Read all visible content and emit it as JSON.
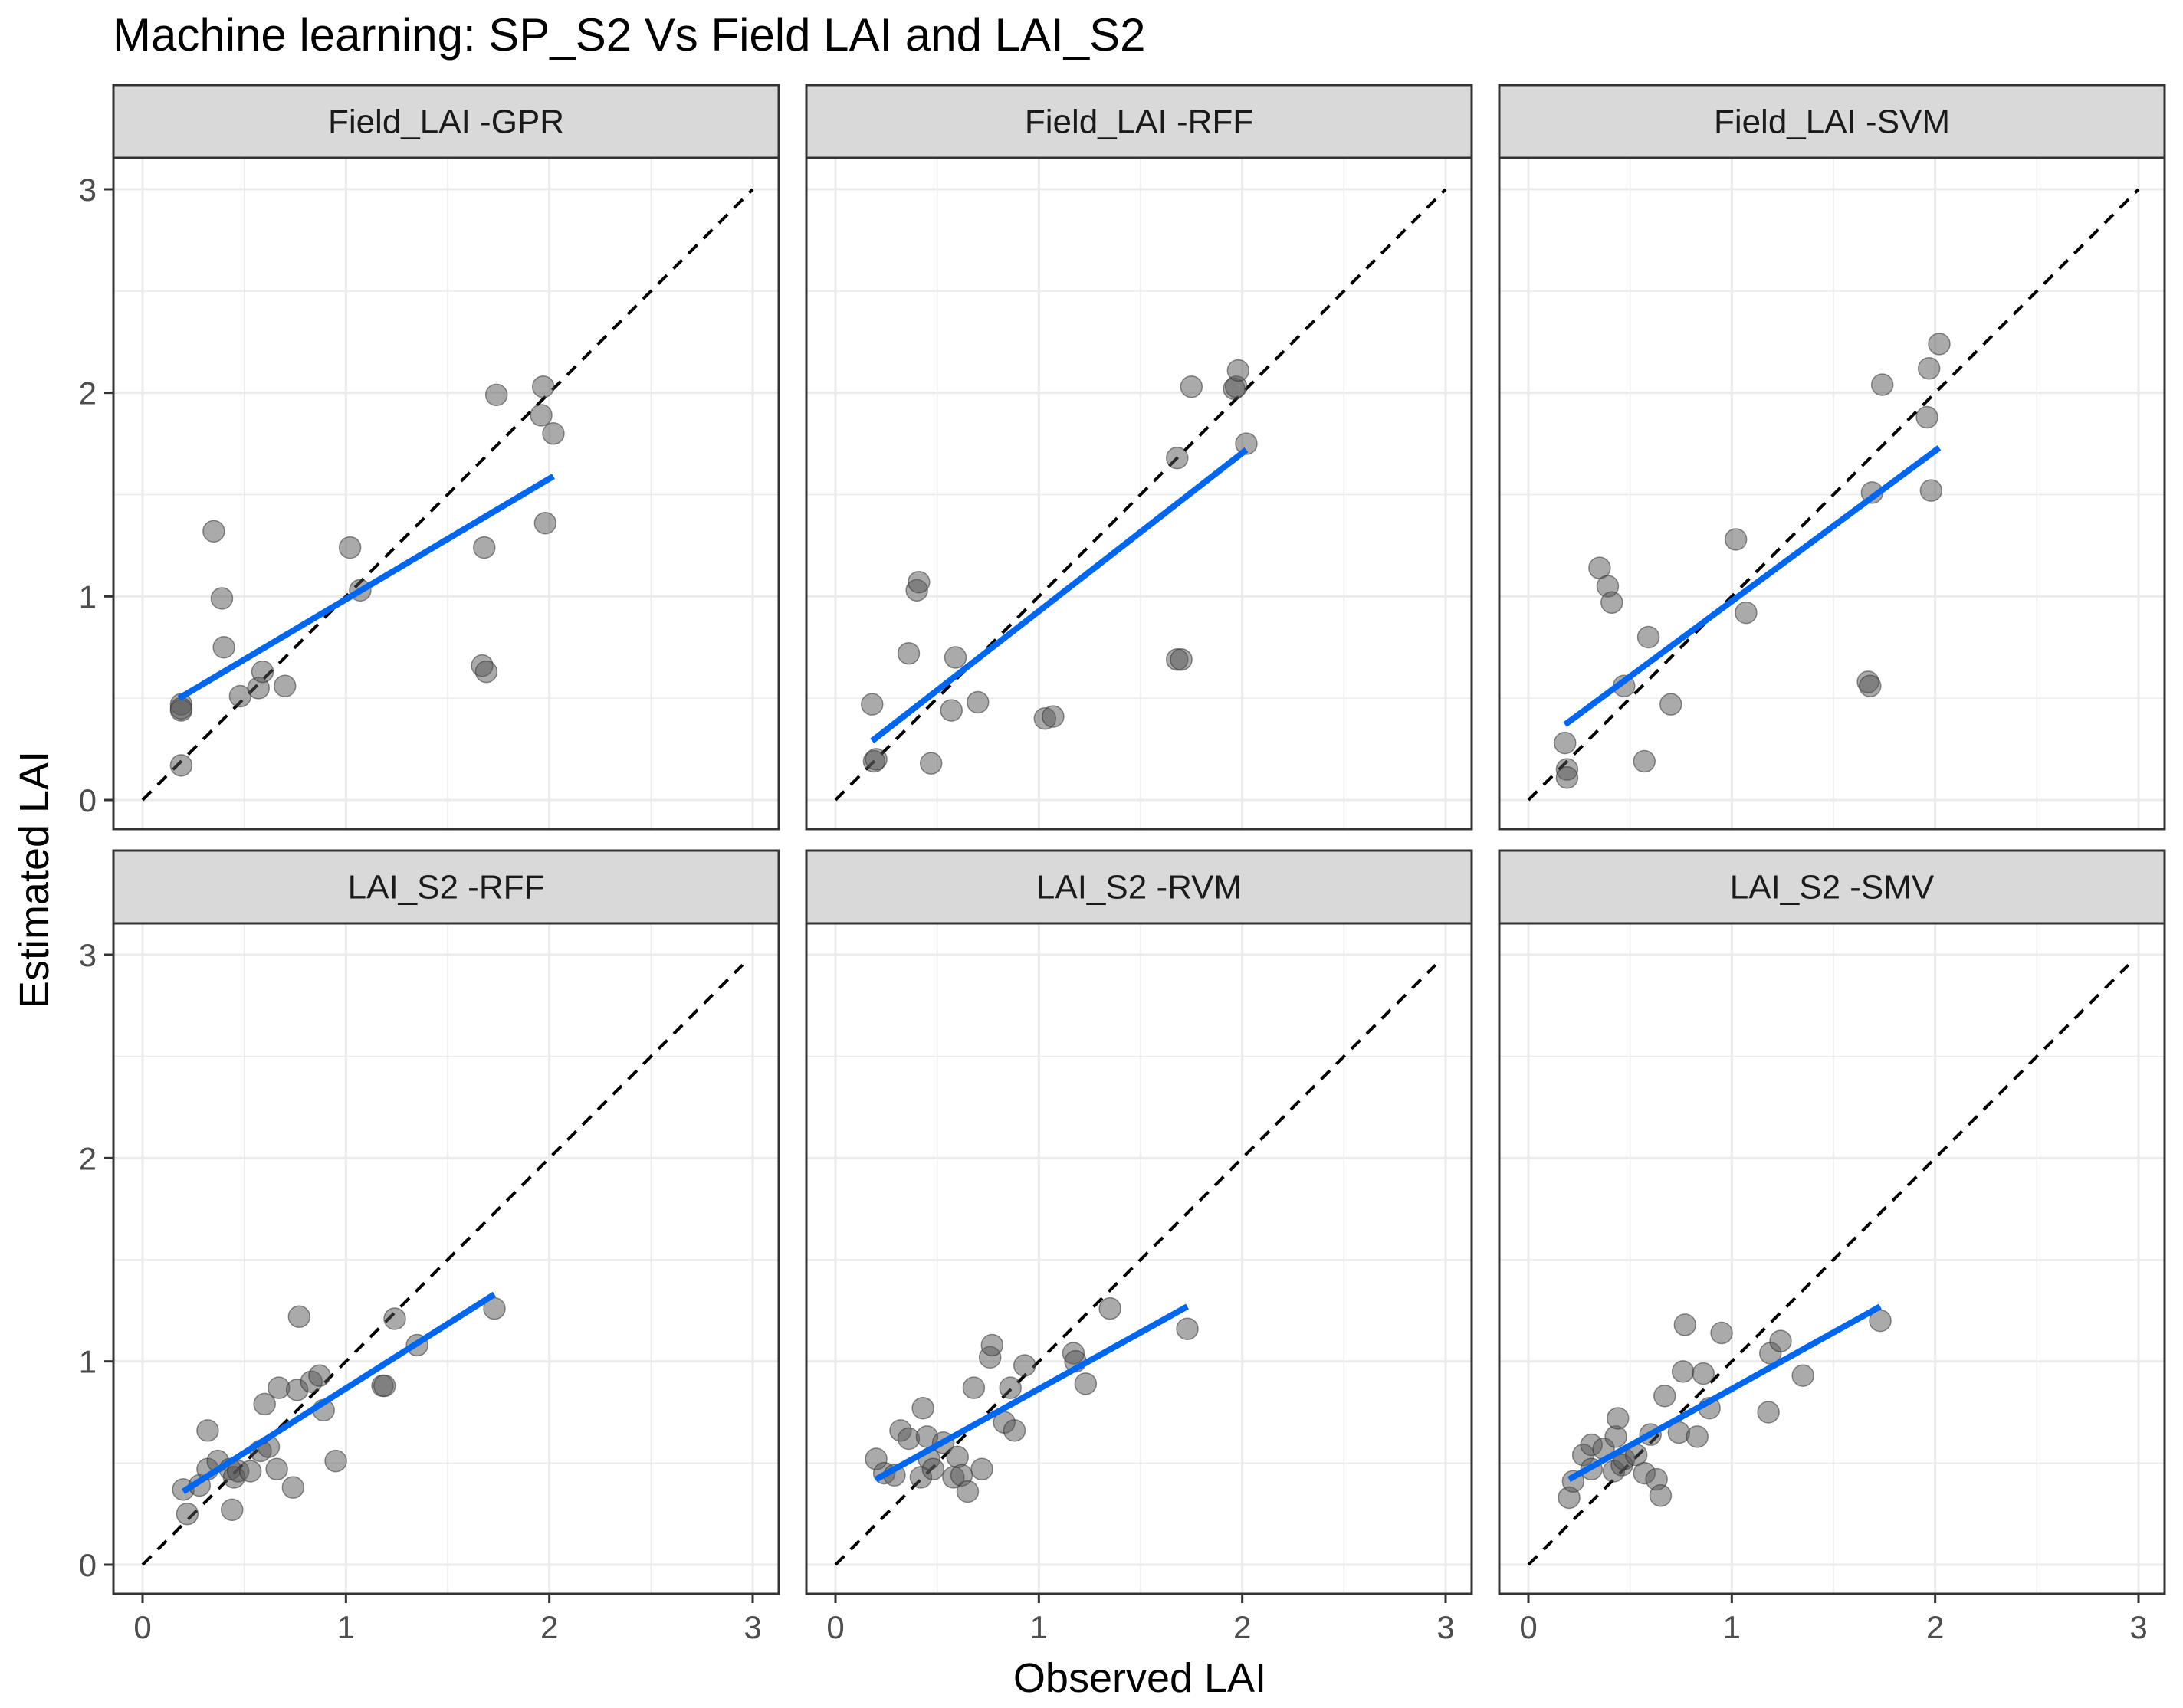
{
  "title": "Machine learning: SP_S2 Vs Field LAI and LAI_S2",
  "xlabel": "Observed LAI",
  "ylabel": "Estimated LAI",
  "colors": {
    "fit_line": "#0066ee",
    "point_fill": "#555555",
    "strip_bg": "#d9d9d9",
    "grid": "#ebebeb",
    "border": "#333333",
    "identity_line": "#000000"
  },
  "chart_data": [
    {
      "type": "scatter",
      "panel": "Field_LAI -GPR",
      "xlim": [
        0,
        3
      ],
      "ylim": [
        0,
        3
      ],
      "xticks": [
        "0",
        "1",
        "2",
        "3"
      ],
      "yticks": [
        "0",
        "1",
        "2",
        "3"
      ],
      "points": [
        [
          0.19,
          0.47
        ],
        [
          0.19,
          0.44
        ],
        [
          0.19,
          0.45
        ],
        [
          0.19,
          0.17
        ],
        [
          0.35,
          1.32
        ],
        [
          0.39,
          0.99
        ],
        [
          0.4,
          0.75
        ],
        [
          0.48,
          0.51
        ],
        [
          0.57,
          0.55
        ],
        [
          0.59,
          0.63
        ],
        [
          0.7,
          0.56
        ],
        [
          1.02,
          1.24
        ],
        [
          1.07,
          1.03
        ],
        [
          1.67,
          0.66
        ],
        [
          1.68,
          1.24
        ],
        [
          1.69,
          0.63
        ],
        [
          1.74,
          1.99
        ],
        [
          1.96,
          1.89
        ],
        [
          1.97,
          2.03
        ],
        [
          1.98,
          1.36
        ],
        [
          2.02,
          1.8
        ]
      ],
      "fit": {
        "x": [
          0.18,
          2.02
        ],
        "y": [
          0.5,
          1.59
        ]
      },
      "identity": {
        "x": [
          0,
          3
        ],
        "y": [
          0,
          3
        ]
      }
    },
    {
      "type": "scatter",
      "panel": "Field_LAI -RFF",
      "xlim": [
        0,
        3
      ],
      "ylim": [
        0,
        3
      ],
      "xticks": [
        "0",
        "1",
        "2",
        "3"
      ],
      "yticks": [
        "0",
        "1",
        "2",
        "3"
      ],
      "points": [
        [
          0.18,
          0.47
        ],
        [
          0.19,
          0.19
        ],
        [
          0.2,
          0.2
        ],
        [
          0.36,
          0.72
        ],
        [
          0.4,
          1.03
        ],
        [
          0.41,
          1.07
        ],
        [
          0.47,
          0.18
        ],
        [
          0.57,
          0.44
        ],
        [
          0.59,
          0.7
        ],
        [
          0.7,
          0.48
        ],
        [
          1.03,
          0.4
        ],
        [
          1.07,
          0.41
        ],
        [
          1.68,
          1.68
        ],
        [
          1.68,
          0.69
        ],
        [
          1.7,
          0.69
        ],
        [
          1.75,
          2.03
        ],
        [
          1.96,
          2.02
        ],
        [
          1.97,
          2.03
        ],
        [
          1.98,
          2.11
        ],
        [
          2.02,
          1.75
        ]
      ],
      "fit": {
        "x": [
          0.18,
          2.02
        ],
        "y": [
          0.29,
          1.72
        ]
      },
      "identity": {
        "x": [
          0,
          3
        ],
        "y": [
          0,
          3
        ]
      }
    },
    {
      "type": "scatter",
      "panel": "Field_LAI -SVM",
      "xlim": [
        0,
        3
      ],
      "ylim": [
        0,
        3
      ],
      "xticks": [
        "0",
        "1",
        "2",
        "3"
      ],
      "yticks": [
        "0",
        "1",
        "2",
        "3"
      ],
      "points": [
        [
          0.18,
          0.28
        ],
        [
          0.19,
          0.15
        ],
        [
          0.19,
          0.11
        ],
        [
          0.35,
          1.14
        ],
        [
          0.39,
          1.05
        ],
        [
          0.41,
          0.97
        ],
        [
          0.47,
          0.56
        ],
        [
          0.57,
          0.19
        ],
        [
          0.59,
          0.8
        ],
        [
          0.7,
          0.47
        ],
        [
          1.02,
          1.28
        ],
        [
          1.07,
          0.92
        ],
        [
          1.67,
          0.58
        ],
        [
          1.68,
          0.56
        ],
        [
          1.69,
          1.51
        ],
        [
          1.74,
          2.04
        ],
        [
          1.96,
          1.88
        ],
        [
          1.97,
          2.12
        ],
        [
          1.98,
          1.52
        ],
        [
          2.02,
          2.24
        ]
      ],
      "fit": {
        "x": [
          0.18,
          2.02
        ],
        "y": [
          0.37,
          1.73
        ]
      },
      "identity": {
        "x": [
          0,
          3
        ],
        "y": [
          0,
          3
        ]
      }
    },
    {
      "type": "scatter",
      "panel": "LAI_S2 -RFF",
      "xlim": [
        0,
        3
      ],
      "ylim": [
        0,
        3
      ],
      "xticks": [
        "0",
        "1",
        "2",
        "3"
      ],
      "yticks": [
        "0",
        "1",
        "2",
        "3"
      ],
      "points": [
        [
          0.2,
          0.37
        ],
        [
          0.22,
          0.25
        ],
        [
          0.28,
          0.39
        ],
        [
          0.32,
          0.47
        ],
        [
          0.32,
          0.66
        ],
        [
          0.37,
          0.51
        ],
        [
          0.43,
          0.47
        ],
        [
          0.44,
          0.27
        ],
        [
          0.45,
          0.43
        ],
        [
          0.47,
          0.46
        ],
        [
          0.53,
          0.46
        ],
        [
          0.58,
          0.56
        ],
        [
          0.6,
          0.79
        ],
        [
          0.62,
          0.58
        ],
        [
          0.66,
          0.47
        ],
        [
          0.67,
          0.87
        ],
        [
          0.74,
          0.38
        ],
        [
          0.76,
          0.86
        ],
        [
          0.77,
          1.22
        ],
        [
          0.83,
          0.9
        ],
        [
          0.87,
          0.93
        ],
        [
          0.89,
          0.76
        ],
        [
          0.95,
          0.51
        ],
        [
          1.18,
          0.88
        ],
        [
          1.19,
          0.88
        ],
        [
          1.24,
          1.21
        ],
        [
          1.35,
          1.08
        ],
        [
          1.73,
          1.26
        ]
      ],
      "fit": {
        "x": [
          0.2,
          1.73
        ],
        "y": [
          0.36,
          1.33
        ]
      },
      "identity": {
        "x": [
          0,
          2.95
        ],
        "y": [
          0,
          2.95
        ]
      }
    },
    {
      "type": "scatter",
      "panel": "LAI_S2 -RVM",
      "xlim": [
        0,
        3
      ],
      "ylim": [
        0,
        3
      ],
      "xticks": [
        "0",
        "1",
        "2",
        "3"
      ],
      "yticks": [
        "0",
        "1",
        "2",
        "3"
      ],
      "points": [
        [
          0.2,
          0.52
        ],
        [
          0.24,
          0.45
        ],
        [
          0.29,
          0.44
        ],
        [
          0.32,
          0.66
        ],
        [
          0.36,
          0.62
        ],
        [
          0.42,
          0.43
        ],
        [
          0.43,
          0.77
        ],
        [
          0.45,
          0.63
        ],
        [
          0.46,
          0.52
        ],
        [
          0.48,
          0.47
        ],
        [
          0.53,
          0.6
        ],
        [
          0.58,
          0.43
        ],
        [
          0.6,
          0.53
        ],
        [
          0.62,
          0.44
        ],
        [
          0.65,
          0.36
        ],
        [
          0.68,
          0.87
        ],
        [
          0.72,
          0.47
        ],
        [
          0.76,
          1.02
        ],
        [
          0.77,
          1.08
        ],
        [
          0.83,
          0.7
        ],
        [
          0.86,
          0.87
        ],
        [
          0.88,
          0.66
        ],
        [
          0.93,
          0.98
        ],
        [
          1.17,
          1.04
        ],
        [
          1.18,
          1.0
        ],
        [
          1.23,
          0.89
        ],
        [
          1.35,
          1.26
        ],
        [
          1.73,
          1.16
        ]
      ],
      "fit": {
        "x": [
          0.2,
          1.73
        ],
        "y": [
          0.42,
          1.27
        ]
      },
      "identity": {
        "x": [
          0,
          2.95
        ],
        "y": [
          0,
          2.95
        ]
      }
    },
    {
      "type": "scatter",
      "panel": "LAI_S2 -SMV",
      "xlim": [
        0,
        3
      ],
      "ylim": [
        0,
        3
      ],
      "xticks": [
        "0",
        "1",
        "2",
        "3"
      ],
      "yticks": [
        "0",
        "1",
        "2",
        "3"
      ],
      "points": [
        [
          0.2,
          0.33
        ],
        [
          0.22,
          0.41
        ],
        [
          0.27,
          0.54
        ],
        [
          0.31,
          0.47
        ],
        [
          0.31,
          0.59
        ],
        [
          0.37,
          0.57
        ],
        [
          0.42,
          0.46
        ],
        [
          0.43,
          0.63
        ],
        [
          0.44,
          0.72
        ],
        [
          0.46,
          0.49
        ],
        [
          0.47,
          0.52
        ],
        [
          0.53,
          0.54
        ],
        [
          0.57,
          0.45
        ],
        [
          0.6,
          0.64
        ],
        [
          0.63,
          0.42
        ],
        [
          0.65,
          0.34
        ],
        [
          0.67,
          0.83
        ],
        [
          0.74,
          0.65
        ],
        [
          0.76,
          0.95
        ],
        [
          0.77,
          1.18
        ],
        [
          0.83,
          0.63
        ],
        [
          0.86,
          0.94
        ],
        [
          0.89,
          0.77
        ],
        [
          0.95,
          1.14
        ],
        [
          1.18,
          0.75
        ],
        [
          1.19,
          1.04
        ],
        [
          1.24,
          1.1
        ],
        [
          1.35,
          0.93
        ],
        [
          1.73,
          1.2
        ]
      ],
      "fit": {
        "x": [
          0.2,
          1.73
        ],
        "y": [
          0.42,
          1.27
        ]
      },
      "identity": {
        "x": [
          0,
          2.95
        ],
        "y": [
          0,
          2.95
        ]
      }
    }
  ]
}
